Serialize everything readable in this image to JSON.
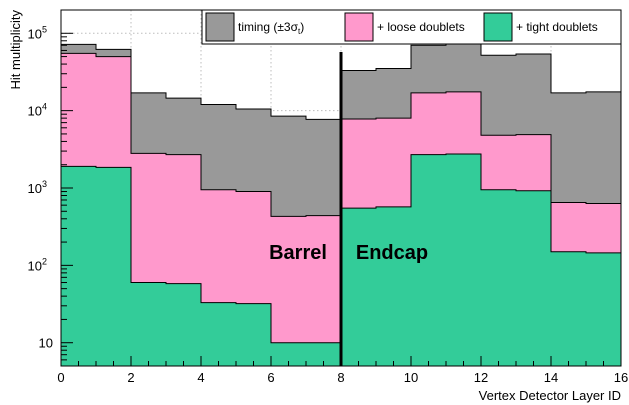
{
  "chart_data": {
    "type": "histogram",
    "title": "",
    "xlabel": "Vertex Detector Layer ID",
    "ylabel": "Hit multiplicity",
    "xlim": [
      0,
      16
    ],
    "ylim": [
      5,
      200000
    ],
    "yscale": "log",
    "grid": true,
    "legend_position": "top",
    "bin_edges": [
      0,
      1,
      2,
      3,
      4,
      5,
      6,
      7,
      8,
      9,
      10,
      11,
      12,
      13,
      14,
      15,
      16
    ],
    "x_ticks": [
      0,
      2,
      4,
      6,
      8,
      10,
      12,
      14,
      16
    ],
    "y_ticks": [
      {
        "value": 10,
        "label": "10"
      },
      {
        "value": 100,
        "label": "10",
        "sup": "2"
      },
      {
        "value": 1000,
        "label": "10",
        "sup": "3"
      },
      {
        "value": 10000,
        "label": "10",
        "sup": "4"
      },
      {
        "value": 100000,
        "label": "10",
        "sup": "5"
      }
    ],
    "series": [
      {
        "name": "timing (±3σ",
        "name_sub": "t",
        "name_suffix": ")",
        "color": "#999999",
        "values": [
          72000,
          62000,
          17000,
          14500,
          12000,
          10500,
          8500,
          7700,
          33000,
          35000,
          70000,
          73000,
          52000,
          54000,
          17000,
          17500
        ]
      },
      {
        "name": "+ loose doublets",
        "color": "#ff99cc",
        "values": [
          55000,
          50000,
          2800,
          2700,
          950,
          900,
          430,
          440,
          7800,
          8000,
          17000,
          17500,
          4800,
          4900,
          650,
          630
        ]
      },
      {
        "name": "+ tight doublets",
        "color": "#33cc99",
        "values": [
          1900,
          1850,
          60,
          58,
          33,
          32,
          10,
          10,
          550,
          570,
          2700,
          2750,
          950,
          920,
          150,
          145
        ]
      }
    ],
    "annotations": [
      {
        "text": "Barrel"
      },
      {
        "text": "Endcap"
      }
    ],
    "separator_x": 8
  }
}
